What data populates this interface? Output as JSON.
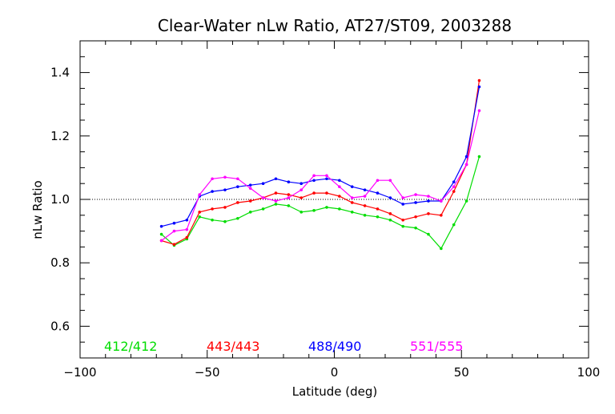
{
  "chart_data": {
    "type": "line",
    "title": "Clear-Water nLw Ratio, AT27/ST09, 2003288",
    "xlabel": "Latitude (deg)",
    "ylabel": "nLw Ratio",
    "xlim": [
      -100,
      100
    ],
    "ylim": [
      0.5,
      1.5
    ],
    "xticks": [
      -100,
      -50,
      0,
      50,
      100
    ],
    "yticks": [
      0.6,
      0.8,
      1.0,
      1.2,
      1.4
    ],
    "xtick_labels": [
      "−100",
      "−50",
      "0",
      "50",
      "100"
    ],
    "ytick_labels": [
      "0.6",
      "0.8",
      "1.0",
      "1.2",
      "1.4"
    ],
    "reference_line": {
      "y": 1.0,
      "style": "dotted"
    },
    "grid": false,
    "legend_placement": "bottom",
    "x": [
      -68,
      -63,
      -58,
      -53,
      -48,
      -43,
      -38,
      -33,
      -28,
      -23,
      -18,
      -13,
      -8,
      -3,
      2,
      7,
      12,
      17,
      22,
      27,
      32,
      37,
      42,
      47,
      52,
      57
    ],
    "series": [
      {
        "name": "412/412",
        "color": "#00dd00",
        "values": [
          0.89,
          0.855,
          0.875,
          0.945,
          0.935,
          0.93,
          0.94,
          0.96,
          0.97,
          0.985,
          0.98,
          0.96,
          0.965,
          0.975,
          0.97,
          0.96,
          0.95,
          0.945,
          0.935,
          0.915,
          0.91,
          0.89,
          0.845,
          0.92,
          0.995,
          1.135
        ]
      },
      {
        "name": "443/443",
        "color": "#ff0000",
        "values": [
          0.87,
          0.858,
          0.88,
          0.96,
          0.97,
          0.975,
          0.99,
          0.995,
          1.005,
          1.02,
          1.015,
          1.005,
          1.02,
          1.02,
          1.01,
          0.99,
          0.98,
          0.97,
          0.955,
          0.935,
          0.945,
          0.955,
          0.95,
          1.025,
          1.11,
          1.375
        ]
      },
      {
        "name": "488/490",
        "color": "#0000ff",
        "values": [
          0.915,
          0.925,
          0.935,
          1.01,
          1.025,
          1.03,
          1.04,
          1.045,
          1.05,
          1.065,
          1.055,
          1.05,
          1.06,
          1.065,
          1.06,
          1.04,
          1.03,
          1.02,
          1.005,
          0.985,
          0.99,
          0.995,
          0.995,
          1.055,
          1.135,
          1.355
        ]
      },
      {
        "name": "551/555",
        "color": "#ff00ff",
        "values": [
          0.87,
          0.9,
          0.905,
          1.015,
          1.065,
          1.07,
          1.065,
          1.035,
          1.005,
          0.995,
          1.005,
          1.03,
          1.075,
          1.075,
          1.04,
          1.005,
          1.01,
          1.06,
          1.06,
          1.005,
          1.015,
          1.01,
          0.995,
          1.04,
          1.11,
          1.28
        ]
      }
    ]
  }
}
